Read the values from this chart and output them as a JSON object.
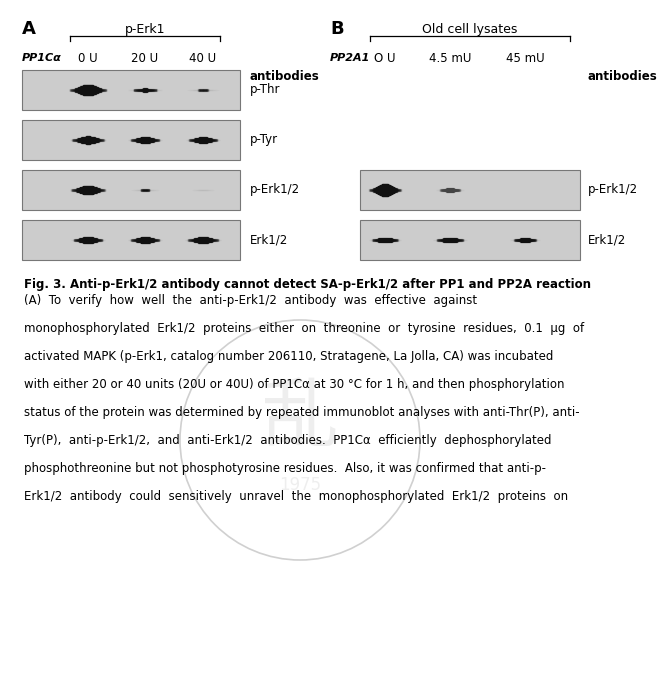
{
  "panel_A_label": "A",
  "panel_B_label": "B",
  "pp1ca_label": "PP1Cα",
  "pp1ca_units": [
    "0 U",
    "20 U",
    "40 U"
  ],
  "perk1_label": "p-Erk1",
  "pp2a1_label": "PP2A1",
  "pp2a1_units": [
    "O U",
    "4.5 mU",
    "45 mU"
  ],
  "old_cell_label": "Old cell lysates",
  "antibodies_label": "antibodies",
  "panel_A_blots": [
    "p-Thr",
    "p-Tyr",
    "p-Erk1/2",
    "Erk1/2"
  ],
  "panel_B_blots": [
    "p-Erk1/2",
    "Erk1/2"
  ],
  "fig_title": "Fig. 3. Anti-p-Erk1/2 antibody cannot detect SA-p-Erk1/2 after PP1 and PP2A reaction",
  "body_lines": [
    "(A)  To  verify  how  well  the  anti-p-Erk1/2  antibody  was  effective  against",
    "monophosphorylated  Erk1/2  proteins  either  on  threonine  or  tyrosine  residues,  0.1  μg  of",
    "activated MAPK (p-Erk1, catalog number 206110, Stratagene, La Jolla, CA) was incubated",
    "with either 20 or 40 units (20U or 40U) of PP1Cα at 30 °C for 1 h, and then phosphorylation",
    "status of the protein was determined by repeated immunoblot analyses with anti-Thr(P), anti-",
    "Tyr(P),  anti-p-Erk1/2,  and  anti-Erk1/2  antibodies.  PP1Cα  efficiently  dephosphorylated",
    "phosphothreonine but not phosphotyrosine residues.  Also, it was confirmed that anti-p-",
    "Erk1/2  antibody  could  sensitively  unravel  the  monophosphorylated  Erk1/2  proteins  on"
  ],
  "bg_color": "#ffffff",
  "blot_bg": "#cccccc",
  "wm_color": "#d0d0d0"
}
